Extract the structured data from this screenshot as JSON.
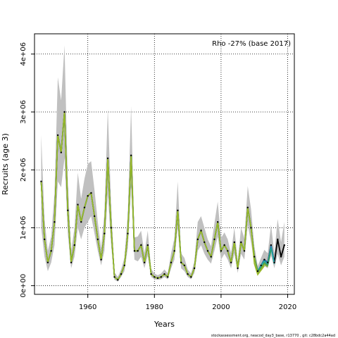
{
  "chart_data": {
    "type": "line",
    "annotation": "Rho -27% (base 2017)",
    "xlabel": "Years",
    "ylabel": "Recruits (age 3)",
    "xlim": [
      1944,
      2022
    ],
    "ylim": [
      -150000,
      4350000
    ],
    "x_ticks": [
      1960,
      1980,
      2000,
      2020
    ],
    "y_ticks": [
      0,
      1000000,
      2000000,
      3000000,
      4000000
    ],
    "y_tick_labels": [
      "0e+00",
      "1e+06",
      "2e+06",
      "3e+06",
      "4e+06"
    ],
    "grid": true,
    "grid_style": "dotted",
    "footer": "stockassessment.org, neacod_day3_base, r13770 , git: c28bdc2a44ad",
    "base_series": {
      "name": "base",
      "color": "#000000",
      "band_color": "#c0c0c0",
      "x": [
        1946,
        1947,
        1948,
        1949,
        1950,
        1951,
        1952,
        1953,
        1954,
        1955,
        1956,
        1957,
        1958,
        1959,
        1960,
        1961,
        1962,
        1963,
        1964,
        1965,
        1966,
        1967,
        1968,
        1969,
        1970,
        1971,
        1972,
        1973,
        1974,
        1975,
        1976,
        1977,
        1978,
        1979,
        1980,
        1981,
        1982,
        1983,
        1984,
        1985,
        1986,
        1987,
        1988,
        1989,
        1990,
        1991,
        1992,
        1993,
        1994,
        1995,
        1996,
        1997,
        1998,
        1999,
        2000,
        2001,
        2002,
        2003,
        2004,
        2005,
        2006,
        2007,
        2008,
        2009,
        2010,
        2011,
        2012,
        2013,
        2014,
        2015,
        2016,
        2017,
        2018,
        2019
      ],
      "y": [
        1800000,
        800000,
        400000,
        600000,
        1100000,
        2600000,
        2300000,
        3000000,
        1300000,
        400000,
        700000,
        1400000,
        1100000,
        1350000,
        1550000,
        1600000,
        1200000,
        800000,
        450000,
        900000,
        2200000,
        1000000,
        150000,
        100000,
        200000,
        350000,
        900000,
        2250000,
        600000,
        600000,
        700000,
        400000,
        700000,
        200000,
        150000,
        130000,
        150000,
        200000,
        150000,
        400000,
        600000,
        1300000,
        400000,
        350000,
        200000,
        150000,
        300000,
        800000,
        950000,
        750000,
        600000,
        500000,
        800000,
        1100000,
        600000,
        700000,
        600000,
        400000,
        750000,
        300000,
        750000,
        600000,
        1350000,
        1000000,
        500000,
        250000,
        350000,
        450000,
        400000,
        700000,
        400000,
        800000,
        500000,
        700000
      ],
      "lower": [
        1000000,
        500000,
        250000,
        400000,
        700000,
        1800000,
        1700000,
        2200000,
        900000,
        300000,
        500000,
        1000000,
        800000,
        1000000,
        1100000,
        1200000,
        900000,
        600000,
        350000,
        600000,
        1600000,
        700000,
        100000,
        70000,
        150000,
        250000,
        650000,
        1700000,
        450000,
        420000,
        500000,
        300000,
        520000,
        150000,
        110000,
        100000,
        110000,
        150000,
        110000,
        300000,
        450000,
        1000000,
        300000,
        250000,
        150000,
        110000,
        220000,
        600000,
        700000,
        550000,
        450000,
        380000,
        600000,
        850000,
        450000,
        550000,
        450000,
        300000,
        550000,
        220000,
        550000,
        450000,
        1050000,
        750000,
        380000,
        190000,
        260000,
        340000,
        300000,
        520000,
        300000,
        550000,
        350000,
        500000
      ],
      "upper": [
        2600000,
        1150000,
        600000,
        850000,
        1600000,
        3600000,
        3200000,
        4150000,
        1800000,
        600000,
        1000000,
        1950000,
        1500000,
        1850000,
        2100000,
        2150000,
        1650000,
        1100000,
        650000,
        1250000,
        3050000,
        1400000,
        230000,
        150000,
        280000,
        480000,
        1250000,
        3100000,
        830000,
        850000,
        950000,
        560000,
        950000,
        290000,
        210000,
        180000,
        210000,
        280000,
        210000,
        560000,
        820000,
        1800000,
        560000,
        480000,
        280000,
        210000,
        420000,
        1100000,
        1200000,
        1000000,
        800000,
        680000,
        1080000,
        1450000,
        820000,
        920000,
        800000,
        560000,
        1000000,
        420000,
        1000000,
        820000,
        1720000,
        1320000,
        680000,
        340000,
        480000,
        620000,
        560000,
        1050000,
        560000,
        1150000,
        750000,
        1100000
      ]
    },
    "series": [
      {
        "name": "",
        "color": "#2a7ab0",
        "end_year": 2016
      },
      {
        "name": "",
        "color": "#1fa8a0",
        "end_year": 2016
      },
      {
        "name": "",
        "color": "#3a9a5a",
        "end_year": 2015
      },
      {
        "name": "",
        "color": "#7fb030",
        "end_year": 2014
      },
      {
        "name": "",
        "color": "#9ab828",
        "end_year": 2013
      }
    ]
  }
}
